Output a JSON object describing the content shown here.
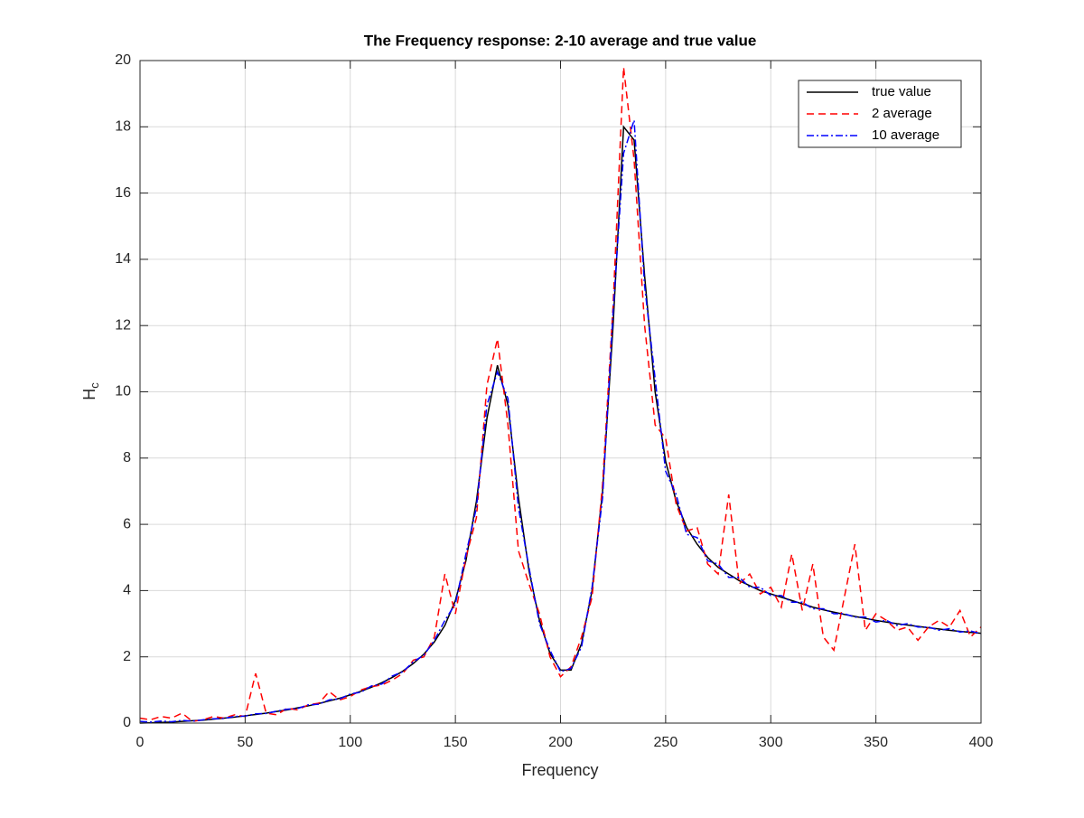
{
  "chart_data": {
    "type": "line",
    "title": "The Frequency response: 2-10 average and true value",
    "xlabel": "Frequency",
    "ylabel": {
      "text": "H",
      "subscript": "c"
    },
    "x": [
      0,
      5,
      10,
      15,
      20,
      25,
      30,
      35,
      40,
      45,
      50,
      55,
      60,
      65,
      70,
      75,
      80,
      85,
      90,
      95,
      100,
      105,
      110,
      115,
      120,
      125,
      130,
      135,
      140,
      145,
      150,
      155,
      160,
      165,
      170,
      175,
      180,
      185,
      190,
      195,
      200,
      205,
      210,
      215,
      220,
      225,
      230,
      235,
      240,
      245,
      250,
      255,
      260,
      265,
      270,
      275,
      280,
      285,
      290,
      295,
      300,
      305,
      310,
      315,
      320,
      325,
      330,
      335,
      340,
      345,
      350,
      355,
      360,
      365,
      370,
      375,
      380,
      385,
      390,
      395,
      400
    ],
    "series": [
      {
        "name": "true value",
        "color": "#000000",
        "linestyle": "solid",
        "values": [
          0,
          0.01,
          0.02,
          0.03,
          0.05,
          0.07,
          0.09,
          0.12,
          0.15,
          0.18,
          0.22,
          0.26,
          0.3,
          0.35,
          0.4,
          0.46,
          0.52,
          0.59,
          0.67,
          0.75,
          0.85,
          0.96,
          1.08,
          1.22,
          1.38,
          1.57,
          1.8,
          2.08,
          2.45,
          2.95,
          3.7,
          4.9,
          6.7,
          9.2,
          10.8,
          9.6,
          6.8,
          4.6,
          3.1,
          2.1,
          1.6,
          1.6,
          2.4,
          4.0,
          7.0,
          12.0,
          18.0,
          17.6,
          13.5,
          10.0,
          7.9,
          6.7,
          5.9,
          5.4,
          5.0,
          4.7,
          4.5,
          4.3,
          4.15,
          4.0,
          3.9,
          3.8,
          3.7,
          3.6,
          3.5,
          3.42,
          3.35,
          3.28,
          3.22,
          3.16,
          3.1,
          3.05,
          3.0,
          2.96,
          2.92,
          2.88,
          2.84,
          2.8,
          2.77,
          2.74,
          2.71
        ]
      },
      {
        "name": "2 average",
        "color": "#ff0000",
        "linestyle": "dashed",
        "values": [
          0.15,
          0.1,
          0.2,
          0.15,
          0.3,
          0.05,
          0.1,
          0.2,
          0.15,
          0.25,
          0.2,
          1.5,
          0.3,
          0.25,
          0.45,
          0.4,
          0.55,
          0.6,
          0.95,
          0.7,
          0.8,
          1.0,
          1.1,
          1.15,
          1.3,
          1.5,
          1.9,
          2.0,
          2.6,
          4.5,
          3.3,
          5.0,
          6.2,
          10.2,
          11.6,
          9.0,
          5.2,
          4.2,
          3.3,
          2.0,
          1.4,
          1.7,
          2.6,
          3.8,
          7.2,
          12.6,
          19.8,
          17.0,
          12.0,
          9.0,
          8.6,
          6.6,
          5.8,
          5.9,
          4.8,
          4.5,
          6.9,
          4.2,
          4.5,
          3.9,
          4.1,
          3.5,
          5.1,
          3.4,
          4.8,
          2.6,
          2.2,
          3.8,
          5.4,
          2.8,
          3.3,
          3.1,
          2.8,
          2.9,
          2.5,
          2.9,
          3.1,
          2.9,
          3.4,
          2.6,
          2.9
        ]
      },
      {
        "name": "10 average",
        "color": "#0000ff",
        "linestyle": "dashdot",
        "values": [
          0.05,
          0.03,
          0.06,
          0.04,
          0.08,
          0.06,
          0.1,
          0.13,
          0.14,
          0.2,
          0.21,
          0.28,
          0.29,
          0.36,
          0.42,
          0.44,
          0.55,
          0.57,
          0.7,
          0.73,
          0.88,
          0.93,
          1.12,
          1.18,
          1.42,
          1.55,
          1.85,
          2.05,
          2.5,
          3.1,
          3.6,
          5.1,
          6.5,
          9.6,
          10.6,
          9.8,
          6.5,
          4.7,
          3.0,
          2.2,
          1.55,
          1.65,
          2.3,
          4.1,
          6.8,
          12.4,
          17.2,
          18.2,
          13.2,
          10.4,
          7.6,
          6.9,
          5.7,
          5.6,
          4.9,
          4.8,
          4.4,
          4.4,
          4.1,
          4.1,
          3.85,
          3.85,
          3.65,
          3.65,
          3.45,
          3.45,
          3.3,
          3.3,
          3.2,
          3.2,
          3.05,
          3.1,
          2.95,
          3.0,
          2.9,
          2.9,
          2.8,
          2.85,
          2.75,
          2.78,
          2.7
        ]
      }
    ],
    "xlim": [
      0,
      400
    ],
    "xticks": [
      0,
      50,
      100,
      150,
      200,
      250,
      300,
      350,
      400
    ],
    "ylim": [
      0,
      20
    ],
    "yticks": [
      0,
      2,
      4,
      6,
      8,
      10,
      12,
      14,
      16,
      18,
      20
    ],
    "grid": true,
    "legend": "northeast"
  }
}
